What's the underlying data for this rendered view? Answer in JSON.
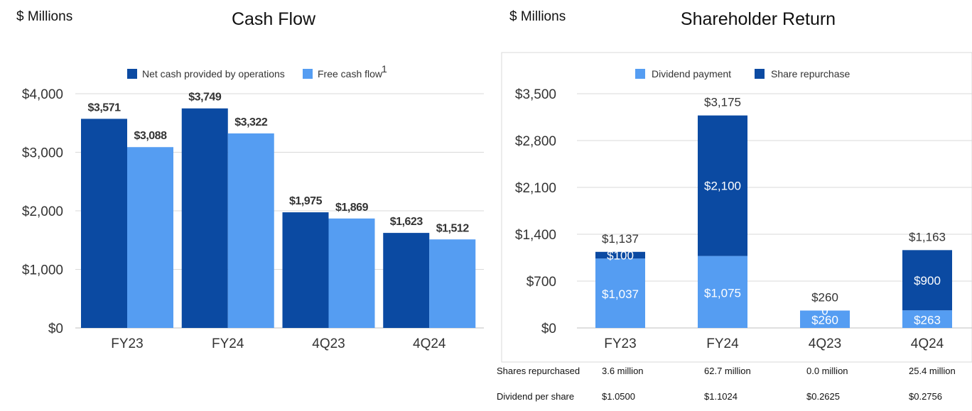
{
  "chart_data": [
    {
      "type": "bar",
      "unit_label": "$ Millions",
      "title": "Cash Flow",
      "categories": [
        "FY23",
        "FY24",
        "4Q23",
        "4Q24"
      ],
      "series": [
        {
          "name": "Net cash provided by operations",
          "values": [
            3571,
            3749,
            1975,
            1623
          ],
          "labels": [
            "$3,571",
            "$3,749",
            "$1,975",
            "$1,623"
          ],
          "color": "#0b4aa2"
        },
        {
          "name": "Free cash flow",
          "name_superscript": "1",
          "values": [
            3088,
            3322,
            1869,
            1512
          ],
          "labels": [
            "$3,088",
            "$3,322",
            "$1,869",
            "$1,512"
          ],
          "color": "#559df2"
        }
      ],
      "yticks": [
        "$0",
        "$1,000",
        "$2,000",
        "$3,000",
        "$4,000"
      ],
      "ytick_values": [
        0,
        1000,
        2000,
        3000,
        4000
      ],
      "ylim": [
        0,
        4000
      ],
      "grid": true,
      "legend_position": "top"
    },
    {
      "type": "bar",
      "stacked": true,
      "unit_label": "$ Millions",
      "title": "Shareholder Return",
      "categories": [
        "FY23",
        "FY24",
        "4Q23",
        "4Q24"
      ],
      "series": [
        {
          "name": "Dividend payment",
          "values": [
            1037,
            1075,
            260,
            263
          ],
          "labels": [
            "$1,037",
            "$1,075",
            "$260",
            "$263"
          ],
          "color": "#559df2"
        },
        {
          "name": "Share repurchase",
          "values": [
            100,
            2100,
            0,
            900
          ],
          "labels": [
            "$100",
            "$2,100",
            "0",
            "$900"
          ],
          "color": "#0b4aa2"
        }
      ],
      "totals": [
        "$1,137",
        "$3,175",
        "$260",
        "$1,163"
      ],
      "yticks": [
        "$0",
        "$700",
        "$1,400",
        "$2,100",
        "$2,800",
        "$3,500"
      ],
      "ytick_values": [
        0,
        700,
        1400,
        2100,
        2800,
        3500
      ],
      "ylim": [
        0,
        3500
      ],
      "grid": true,
      "legend_position": "top",
      "table": [
        {
          "label": "Shares repurchased",
          "values": [
            "3.6 million",
            "62.7 million",
            "0.0 million",
            "25.4  million"
          ]
        },
        {
          "label": "Dividend per share",
          "values": [
            "$1.0500",
            "$1.1024",
            "$0.2625",
            "$0.2756"
          ]
        }
      ]
    }
  ]
}
